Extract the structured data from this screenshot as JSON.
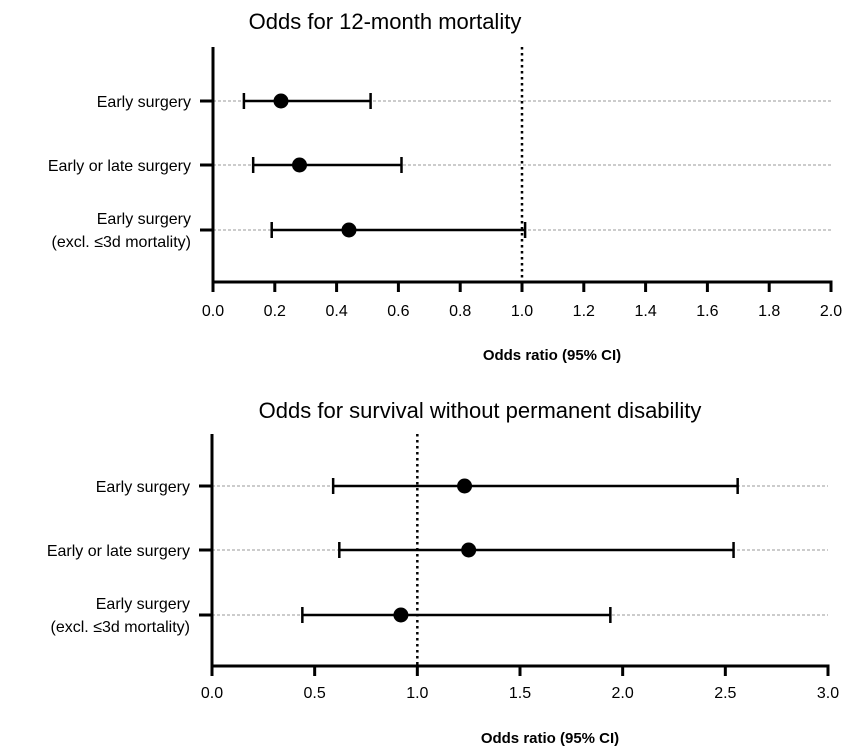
{
  "chart_data": [
    {
      "type": "forest",
      "title": "Odds for 12-month mortality",
      "xlabel": "Odds ratio (95% CI)",
      "xlim": [
        0,
        2.0
      ],
      "xticks": [
        "0.0",
        "0.2",
        "0.4",
        "0.6",
        "0.8",
        "1.0",
        "1.2",
        "1.4",
        "1.6",
        "1.8",
        "2.0"
      ],
      "reference_line": 1.0,
      "gridlines": "horizontal-dashed",
      "categories": [
        {
          "lines": [
            "Early surgery"
          ],
          "estimate": 0.22,
          "ci_low": 0.1,
          "ci_high": 0.51
        },
        {
          "lines": [
            "Early or late surgery"
          ],
          "estimate": 0.28,
          "ci_low": 0.13,
          "ci_high": 0.61
        },
        {
          "lines": [
            "Early surgery",
            "(excl. ≤3d mortality)"
          ],
          "estimate": 0.44,
          "ci_low": 0.19,
          "ci_high": 1.01
        }
      ]
    },
    {
      "type": "forest",
      "title": "Odds for survival without permanent disability",
      "xlabel": "Odds ratio (95% CI)",
      "xlim": [
        0,
        3.0
      ],
      "xticks": [
        "0.0",
        "0.5",
        "1.0",
        "1.5",
        "2.0",
        "2.5",
        "3.0"
      ],
      "reference_line": 1.0,
      "gridlines": "horizontal-dashed",
      "categories": [
        {
          "lines": [
            "Early surgery"
          ],
          "estimate": 1.23,
          "ci_low": 0.59,
          "ci_high": 2.56
        },
        {
          "lines": [
            "Early or late surgery"
          ],
          "estimate": 1.25,
          "ci_low": 0.62,
          "ci_high": 2.54
        },
        {
          "lines": [
            "Early surgery",
            "(excl. ≤3d mortality)"
          ],
          "estimate": 0.92,
          "ci_low": 0.44,
          "ci_high": 1.94
        }
      ]
    }
  ]
}
